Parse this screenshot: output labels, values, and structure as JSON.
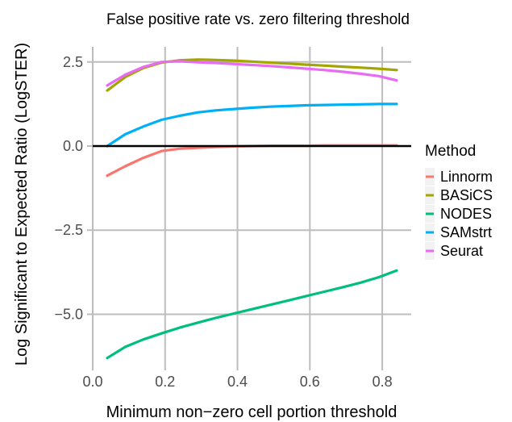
{
  "chart_data": {
    "type": "line",
    "title": "False positive rate vs. zero filtering threshold",
    "xlabel": "Minimum non−zero cell portion threshold",
    "ylabel": "Log Significant to Expected Ratio (LogSTER)",
    "xlim": [
      0.0,
      0.88
    ],
    "ylim": [
      -6.5,
      2.95
    ],
    "xticks": [
      0.0,
      0.2,
      0.4,
      0.6,
      0.8
    ],
    "xtick_labels": [
      "0.0",
      "0.2",
      "0.4",
      "0.6",
      "0.8"
    ],
    "yticks": [
      2.5,
      0.0,
      -2.5,
      -5.0
    ],
    "ytick_labels": [
      "2.5",
      "0.0",
      "−2.5",
      "−5.0"
    ],
    "hline": 0.0,
    "grid": true,
    "legend": {
      "title": "Method",
      "placement": "right"
    },
    "x": [
      0.04,
      0.09,
      0.14,
      0.19,
      0.24,
      0.29,
      0.34,
      0.39,
      0.44,
      0.49,
      0.54,
      0.59,
      0.64,
      0.69,
      0.74,
      0.79,
      0.84
    ],
    "series": [
      {
        "name": "Linnorm",
        "color": "#F8766D",
        "values": [
          -0.88,
          -0.6,
          -0.35,
          -0.15,
          -0.08,
          -0.05,
          -0.03,
          -0.01,
          0.0,
          0.01,
          0.01,
          0.01,
          0.02,
          0.02,
          0.02,
          0.02,
          0.02
        ]
      },
      {
        "name": "BASiCS",
        "color": "#A3A500",
        "values": [
          1.65,
          2.05,
          2.32,
          2.48,
          2.55,
          2.57,
          2.56,
          2.54,
          2.51,
          2.48,
          2.45,
          2.42,
          2.39,
          2.36,
          2.33,
          2.3,
          2.26
        ]
      },
      {
        "name": "NODES",
        "color": "#00BF7D",
        "values": [
          -6.3,
          -5.97,
          -5.75,
          -5.57,
          -5.4,
          -5.25,
          -5.11,
          -4.98,
          -4.85,
          -4.72,
          -4.59,
          -4.46,
          -4.33,
          -4.2,
          -4.06,
          -3.9,
          -3.7
        ]
      },
      {
        "name": "SAMstrt",
        "color": "#00B0F6",
        "values": [
          0.0,
          0.35,
          0.58,
          0.78,
          0.9,
          1.0,
          1.06,
          1.1,
          1.14,
          1.17,
          1.19,
          1.21,
          1.22,
          1.23,
          1.24,
          1.25,
          1.25
        ]
      },
      {
        "name": "Seurat",
        "color": "#E76BF3",
        "values": [
          1.8,
          2.12,
          2.35,
          2.5,
          2.52,
          2.49,
          2.47,
          2.44,
          2.41,
          2.38,
          2.34,
          2.3,
          2.26,
          2.21,
          2.15,
          2.08,
          1.95
        ]
      }
    ]
  }
}
